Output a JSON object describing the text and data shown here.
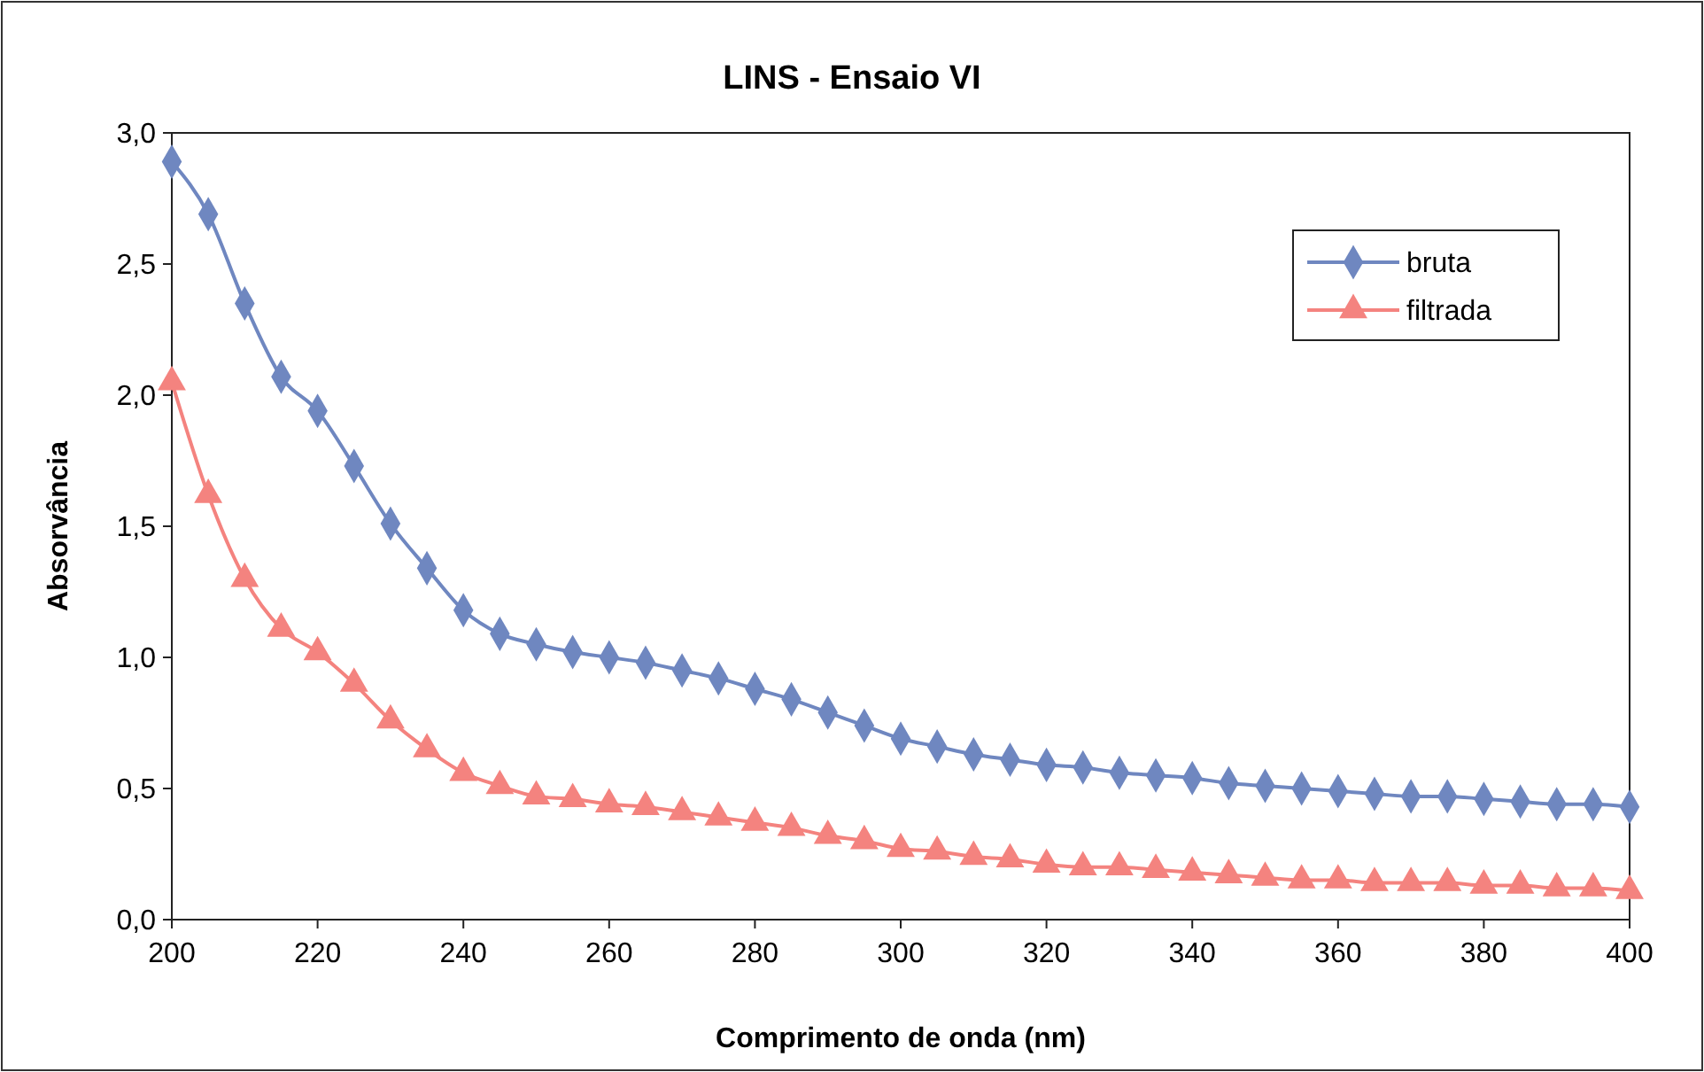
{
  "chart_data": {
    "type": "line",
    "title": "LINS - Ensaio VI",
    "xlabel": "Comprimento de onda (nm)",
    "ylabel": "Absorvância",
    "x": [
      200,
      205,
      210,
      215,
      220,
      225,
      230,
      235,
      240,
      245,
      250,
      255,
      260,
      265,
      270,
      275,
      280,
      285,
      290,
      295,
      300,
      305,
      310,
      315,
      320,
      325,
      330,
      335,
      340,
      345,
      350,
      355,
      360,
      365,
      370,
      375,
      380,
      385,
      390,
      395,
      400
    ],
    "series": [
      {
        "name": "bruta",
        "color": "#6f87c0",
        "marker": "diamond",
        "values": [
          2.89,
          2.69,
          2.35,
          2.07,
          1.94,
          1.73,
          1.51,
          1.34,
          1.18,
          1.09,
          1.05,
          1.02,
          1.0,
          0.98,
          0.95,
          0.92,
          0.88,
          0.84,
          0.79,
          0.74,
          0.69,
          0.66,
          0.63,
          0.61,
          0.59,
          0.58,
          0.56,
          0.55,
          0.54,
          0.52,
          0.51,
          0.5,
          0.49,
          0.48,
          0.47,
          0.47,
          0.46,
          0.45,
          0.44,
          0.44,
          0.43
        ]
      },
      {
        "name": "filtrada",
        "color": "#f4837f",
        "marker": "triangle",
        "values": [
          2.05,
          1.62,
          1.3,
          1.11,
          1.02,
          0.9,
          0.76,
          0.65,
          0.56,
          0.51,
          0.47,
          0.46,
          0.44,
          0.43,
          0.41,
          0.39,
          0.37,
          0.35,
          0.32,
          0.3,
          0.27,
          0.26,
          0.24,
          0.23,
          0.21,
          0.2,
          0.2,
          0.19,
          0.18,
          0.17,
          0.16,
          0.15,
          0.15,
          0.14,
          0.14,
          0.14,
          0.13,
          0.13,
          0.12,
          0.12,
          0.11
        ]
      }
    ],
    "xlim": [
      200,
      400
    ],
    "xticks": [
      200,
      220,
      240,
      260,
      280,
      300,
      320,
      340,
      360,
      380,
      400
    ],
    "ylim": [
      0,
      3
    ],
    "yticks": [
      {
        "value": 0,
        "label": "0,0"
      },
      {
        "value": 0.5,
        "label": "0,5"
      },
      {
        "value": 1,
        "label": "1,0"
      },
      {
        "value": 1.5,
        "label": "1,5"
      },
      {
        "value": 2,
        "label": "2,0"
      },
      {
        "value": 2.5,
        "label": "2,5"
      },
      {
        "value": 3,
        "label": "3,0"
      }
    ],
    "grid": false,
    "legend": "top right",
    "line_style": "solid"
  }
}
